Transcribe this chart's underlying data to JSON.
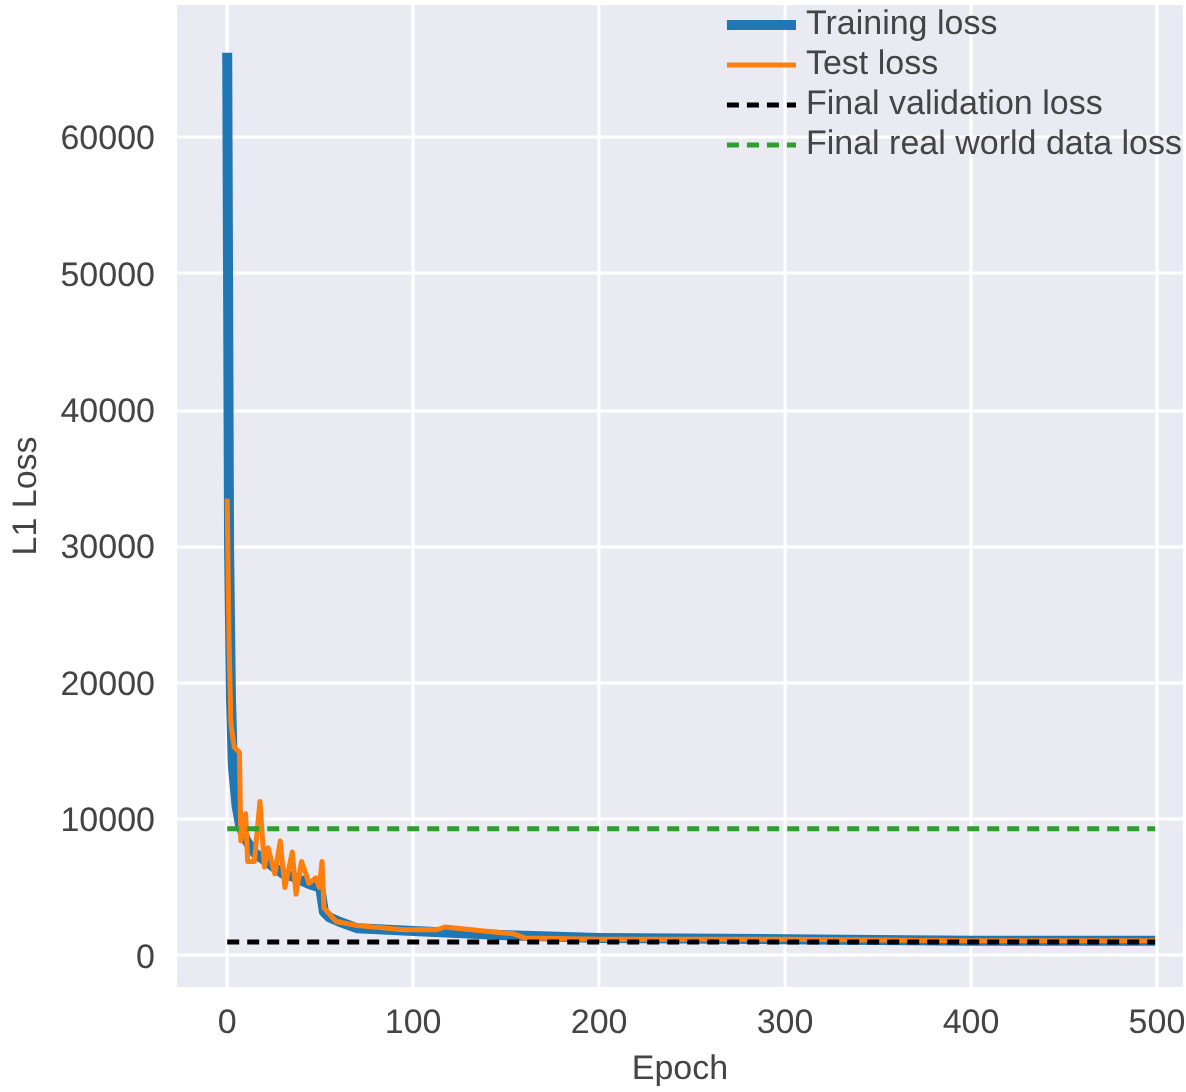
{
  "chart_data": {
    "type": "line",
    "xlabel": "Epoch",
    "ylabel": "L1 Loss",
    "xlim": [
      -27,
      514
    ],
    "ylim": [
      -2300,
      69700
    ],
    "xticks": [
      0,
      100,
      200,
      300,
      400,
      500
    ],
    "yticks": [
      0,
      10000,
      20000,
      30000,
      40000,
      50000,
      60000
    ],
    "grid": true,
    "legend": "top right",
    "line_style": "solid",
    "series": [
      {
        "name": "Training loss",
        "color": "#1f77b4",
        "x": [
          0,
          1,
          2,
          3,
          5,
          7,
          10,
          15,
          20,
          25,
          30,
          35,
          40,
          45,
          50,
          52,
          55,
          60,
          70,
          100,
          150,
          200,
          300,
          400,
          499
        ],
        "values": [
          66200,
          30000,
          19000,
          14000,
          11000,
          9500,
          8500,
          7500,
          7000,
          6500,
          6000,
          5800,
          5500,
          5200,
          5000,
          3200,
          2800,
          2500,
          2000,
          1800,
          1500,
          1300,
          1200,
          1100,
          1100
        ]
      },
      {
        "name": "Test loss",
        "color": "#ff7f0e",
        "x": [
          0,
          1,
          2,
          3.7,
          6.6,
          7.3,
          9.9,
          11,
          14.6,
          17.6,
          20,
          22,
          25.6,
          28.5,
          31,
          35,
          37,
          40,
          44,
          47.6,
          49.5,
          51,
          52,
          58.6,
          70,
          95,
          113,
          117,
          146,
          154,
          160,
          200,
          300,
          400,
          499
        ],
        "values": [
          33500,
          23000,
          17000,
          15300,
          14900,
          8400,
          10400,
          6900,
          6900,
          11300,
          6500,
          7900,
          6000,
          8400,
          5000,
          7600,
          4500,
          6900,
          5300,
          5700,
          5000,
          6900,
          3500,
          2500,
          2200,
          1900,
          1900,
          2100,
          1700,
          1600,
          1300,
          1200,
          1200,
          1100,
          1100
        ]
      },
      {
        "name": "Final validation loss",
        "color": "#000000",
        "line_style": "dashed",
        "x": [
          0,
          499
        ],
        "values": [
          1000,
          1000
        ]
      },
      {
        "name": "Final real world data loss",
        "color": "#2ca02c",
        "line_style": "dashed",
        "x": [
          0,
          499
        ],
        "values": [
          9300,
          9300
        ]
      }
    ]
  }
}
